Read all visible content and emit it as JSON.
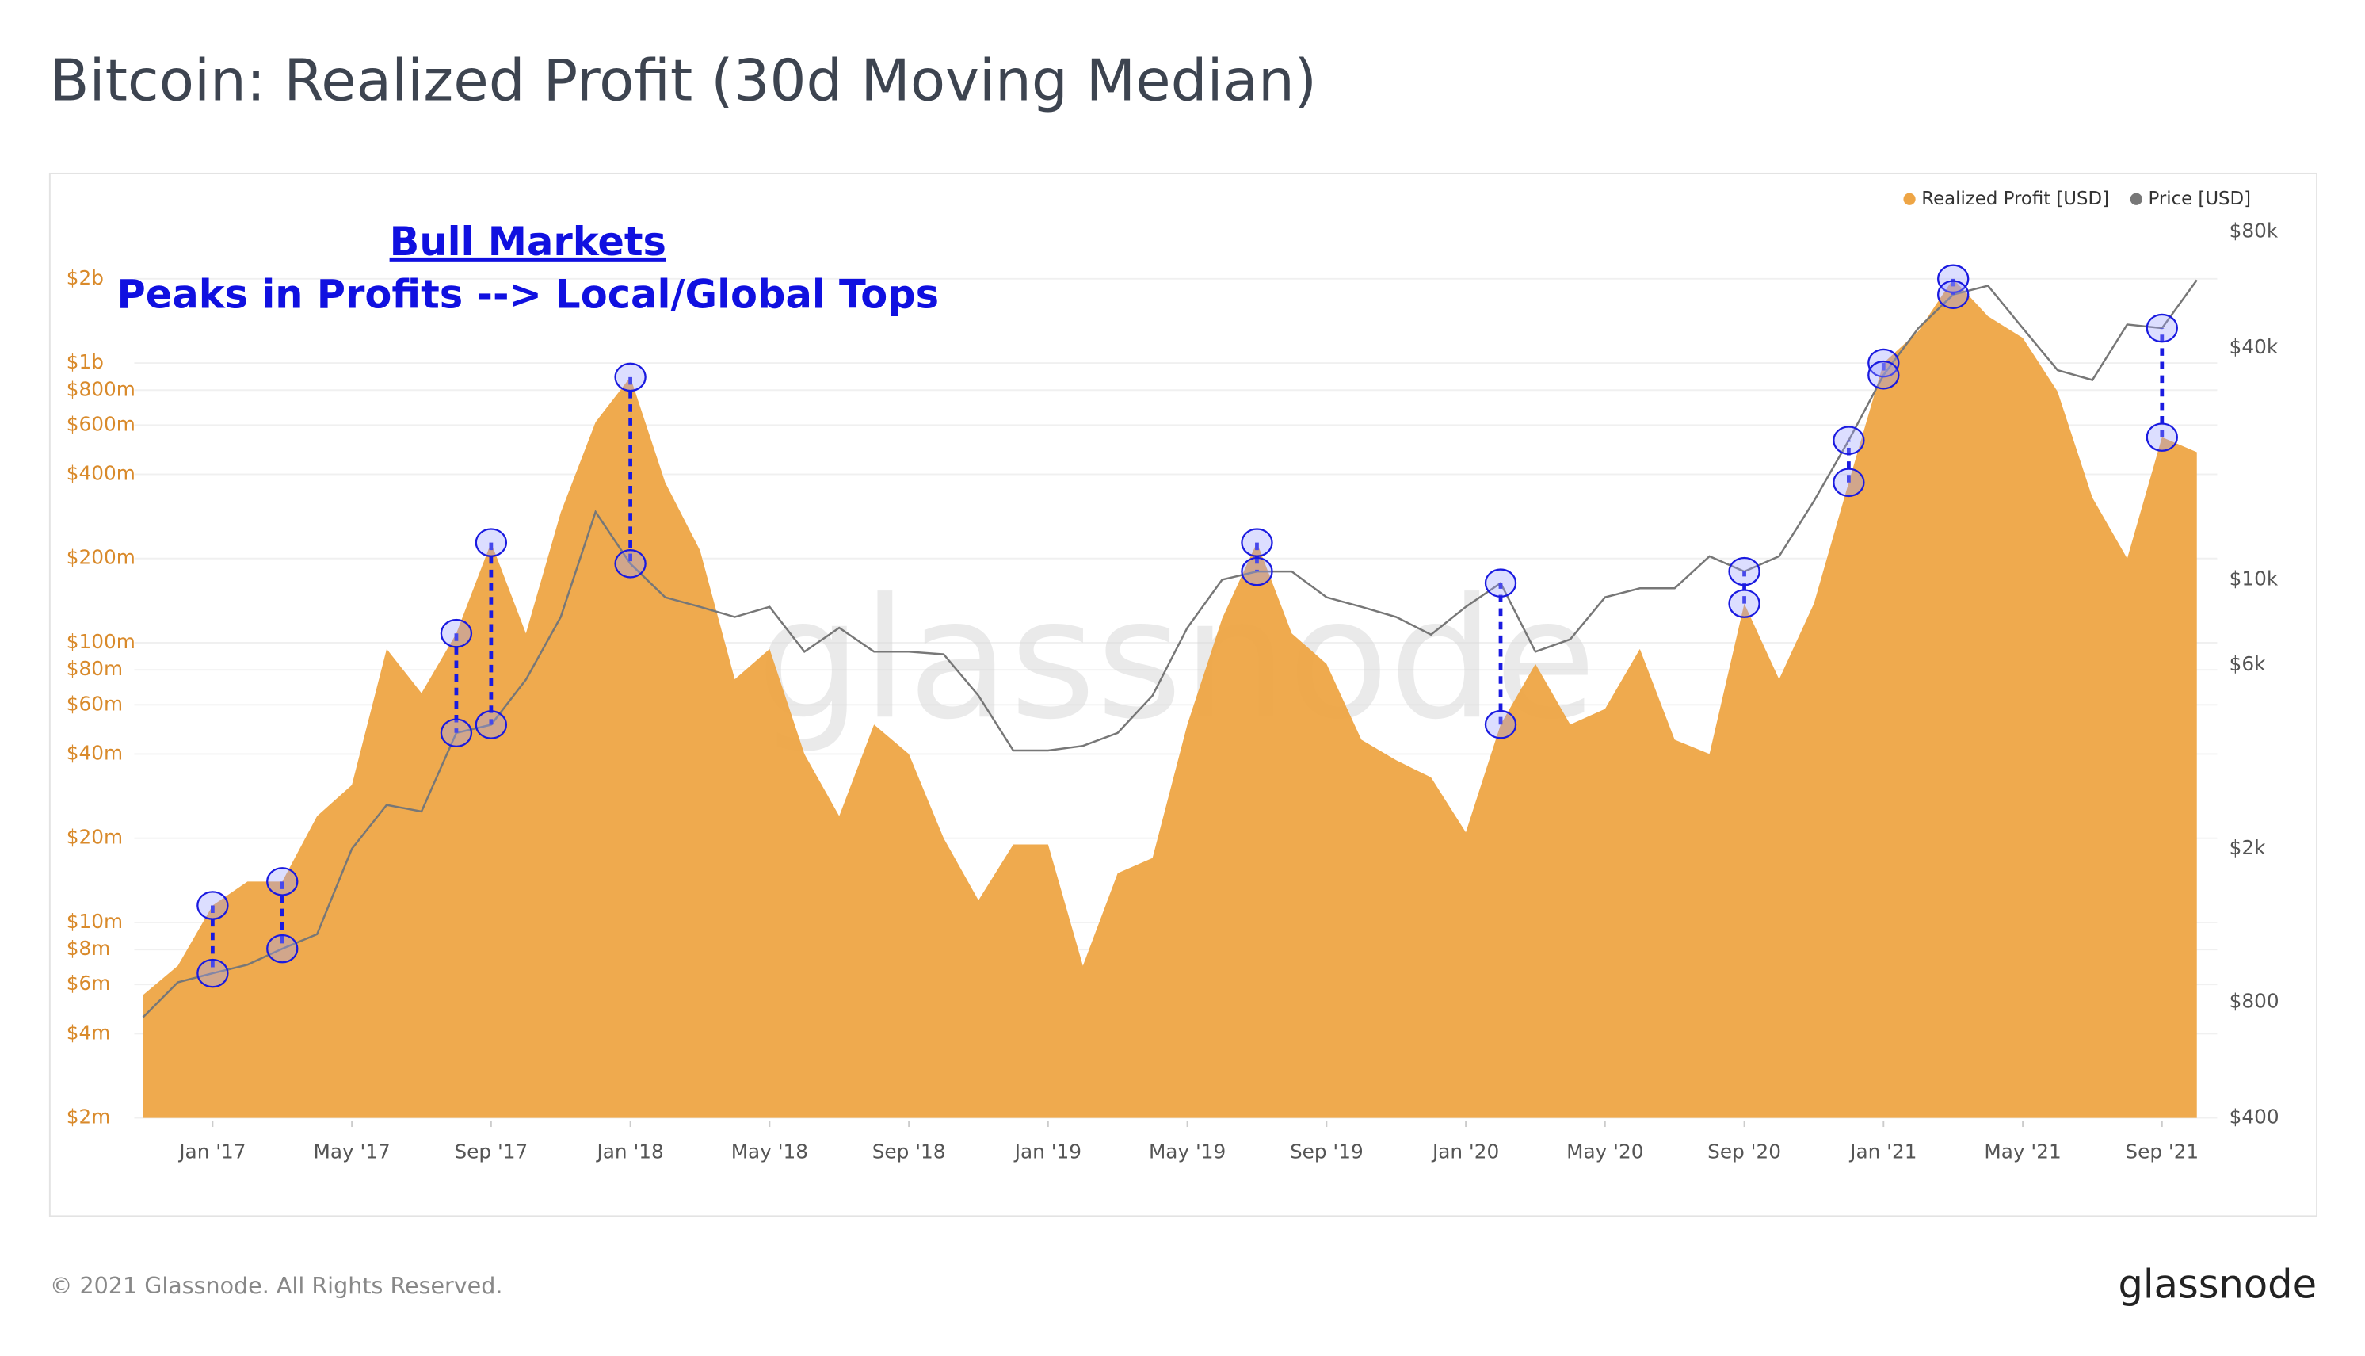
{
  "chart_data": {
    "type": "area",
    "title": "Bitcoin: Realized Profit (30d Moving Median)",
    "annotations": [
      "Bull Markets",
      "Peaks in Profits --> Local/Global Tops"
    ],
    "watermark": "glassnode",
    "footer": "© 2021 Glassnode. All Rights Reserved.",
    "brand": "glassnode",
    "log_scale": true,
    "grid": true,
    "legend": "top-right",
    "categories": [
      null,
      null,
      "Jan '17",
      null,
      null,
      null,
      "May '17",
      null,
      null,
      null,
      "Sep '17",
      null,
      null,
      null,
      "Jan '18",
      null,
      null,
      null,
      "May '18",
      null,
      null,
      null,
      "Sep '18",
      null,
      null,
      null,
      "Jan '19",
      null,
      null,
      null,
      "May '19",
      null,
      null,
      null,
      "Sep '19",
      null,
      null,
      null,
      "Jan '20",
      null,
      null,
      null,
      "May '20",
      null,
      null,
      null,
      "Sep '20",
      null,
      null,
      null,
      "Jan '21",
      null,
      null,
      null,
      "May '21",
      null,
      null,
      null,
      "Sep '21",
      null
    ],
    "series": [
      {
        "name": "Realized Profit [USD]",
        "color": "#eea545",
        "type": "area",
        "values": [
          5500000,
          7000000,
          11500000,
          14000000,
          14000000,
          24000000,
          31000000,
          95000000,
          66000000,
          108000000,
          228000000,
          108000000,
          292000000,
          615000000,
          890000000,
          374000000,
          214000000,
          74000000,
          95000000,
          40000000,
          24000000,
          51000000,
          40000000,
          20000000,
          12000000,
          19000000,
          19000000,
          7000000,
          15000000,
          17000000,
          51000000,
          122000000,
          228000000,
          108000000,
          84000000,
          45000000,
          38000000,
          33000000,
          21000000,
          51000000,
          84000000,
          51000000,
          58000000,
          95000000,
          45000000,
          40000000,
          138000000,
          74000000,
          138000000,
          374000000,
          1000000000,
          1300000000,
          2000000000,
          1470000000,
          1230000000,
          790000000,
          330000000,
          200000000,
          543000000,
          480000000
        ]
      },
      {
        "name": "Price [USD]",
        "color": "#777777",
        "type": "line",
        "axis": "y2",
        "values": [
          730,
          900,
          950,
          1000,
          1100,
          1200,
          2000,
          2600,
          2500,
          4000,
          4200,
          5500,
          8000,
          15000,
          11000,
          9000,
          8500,
          8000,
          8500,
          6500,
          7500,
          6500,
          6500,
          6400,
          5000,
          3600,
          3600,
          3700,
          4000,
          5000,
          7500,
          10000,
          10500,
          10500,
          9000,
          8500,
          8000,
          7200,
          8500,
          9800,
          6500,
          7000,
          9000,
          9500,
          9500,
          11500,
          10500,
          11500,
          16000,
          23000,
          34000,
          45000,
          55000,
          58000,
          45000,
          35000,
          33000,
          46000,
          45000,
          60000
        ]
      }
    ],
    "ylim": [
      2000000,
      4000000000
    ],
    "yticks": [
      {
        "value": 2000000,
        "label": "$2m"
      },
      {
        "value": 4000000,
        "label": "$4m"
      },
      {
        "value": 6000000,
        "label": "$6m"
      },
      {
        "value": 8000000,
        "label": "$8m"
      },
      {
        "value": 10000000,
        "label": "$10m"
      },
      {
        "value": 20000000,
        "label": "$20m"
      },
      {
        "value": 40000000,
        "label": "$40m"
      },
      {
        "value": 60000000,
        "label": "$60m"
      },
      {
        "value": 80000000,
        "label": "$80m"
      },
      {
        "value": 100000000,
        "label": "$100m"
      },
      {
        "value": 200000000,
        "label": "$200m"
      },
      {
        "value": 400000000,
        "label": "$400m"
      },
      {
        "value": 600000000,
        "label": "$600m"
      },
      {
        "value": 800000000,
        "label": "$800m"
      },
      {
        "value": 1000000000,
        "label": "$1b"
      },
      {
        "value": 2000000000,
        "label": "$2b"
      }
    ],
    "y2lim": [
      400,
      100000
    ],
    "y2ticks": [
      {
        "value": 400,
        "label": "$400"
      },
      {
        "value": 800,
        "label": "$800"
      },
      {
        "value": 2000,
        "label": "$2k"
      },
      {
        "value": 6000,
        "label": "$6k"
      },
      {
        "value": 10000,
        "label": "$10k"
      },
      {
        "value": 40000,
        "label": "$40k"
      },
      {
        "value": 80000,
        "label": "$80k"
      }
    ]
  }
}
